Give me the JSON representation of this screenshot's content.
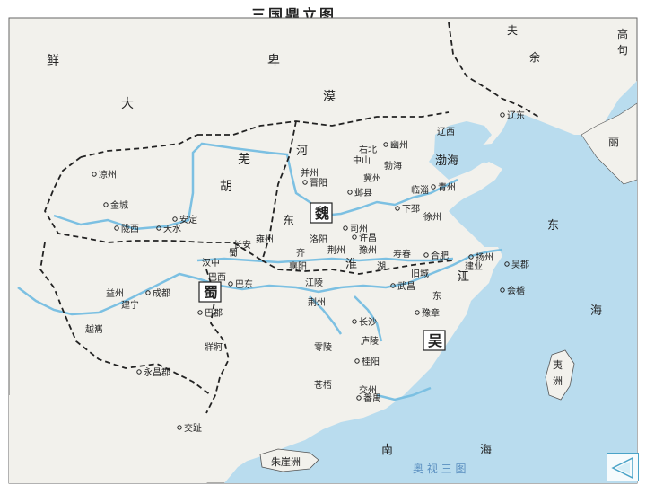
{
  "title": "三国鼎立图",
  "colors": {
    "sea": "#b9dcee",
    "land": "#f2f1ec",
    "river": "#7cc0e2",
    "border": "#222222",
    "text": "#222222",
    "nav": "#4aa3c8"
  },
  "states": [
    {
      "id": "wei",
      "label": "魏"
    },
    {
      "id": "shu",
      "label": "蜀"
    },
    {
      "id": "wu",
      "label": "吴"
    }
  ],
  "regions": {
    "xianbei": [
      "鲜",
      "卑"
    ],
    "damo": [
      "大",
      "漠"
    ],
    "qiangdi": [
      "羌",
      "胡"
    ],
    "fuyu": [
      "夫",
      "余"
    ],
    "gaoju": [
      "高",
      "句",
      "丽"
    ]
  },
  "seas": {
    "bohai": "渤海",
    "donghai": [
      "东",
      "海"
    ],
    "nanhai": [
      "南",
      "海"
    ]
  },
  "islands": {
    "yizhou": [
      "夷",
      "洲"
    ],
    "zhuyazhou": "朱崖洲"
  },
  "rivers": {
    "he": "河",
    "huai": "淮",
    "jiang": "江",
    "dongdong": "东"
  },
  "cities": {
    "youzhou": "幽州",
    "liaodong": "辽东",
    "jiangdong": "辽西",
    "youbeiping": "右北",
    "zhongshan": "中山",
    "bohai_jun": "勃海",
    "bingzhou": "并州",
    "jinyang": "晋阳",
    "jizhou": "冀州",
    "ye": "邺县",
    "linzi": "临淄",
    "qingzhou": "青州",
    "xiapi": "下邳",
    "xuzhou": "徐州",
    "sili": "司州",
    "luoyang": "洛阳",
    "xuchang": "许昌",
    "yuzhou": "豫州",
    "shouchun": "寿春",
    "yongzhou": "雍州",
    "changan": "长安",
    "anding": "安定",
    "tianshui": "天水",
    "longxi": "陇西",
    "liangzhou": "凉州",
    "jincheng": "金城",
    "hanzhong": "汉中",
    "baxi": "巴西",
    "badong": "巴东",
    "chengdu": "成都",
    "yizhou_shu": "益州",
    "jianning": "建宁",
    "yuexi": "越巂",
    "bajun": "巴郡",
    "jingzhou_n": "荆州",
    "xiangyang": "襄阳",
    "jiangling": "江陵",
    "jingzhou_s": "荆州",
    "wuchang": "武昌",
    "hefei": "合肥",
    "jiujiang": "旧城",
    "yangzhou": "扬州",
    "jianye": "建业",
    "wujun": "吴郡",
    "kuaiji": "会稽",
    "changsha": "长沙",
    "yuzhang": "豫章",
    "lingling": "零陵",
    "luling": "庐陵",
    "guiyang": "桂阳",
    "cangwu": "苍梧",
    "jiaozhou": "交州",
    "fanyu": "番禺",
    "jiaozhi": "交趾",
    "zangke": "牂牁",
    "yongchang": "永昌郡",
    "shu_jun": "蜀",
    "jiang_wu": "江",
    "qi": "齐",
    "hu": "湖",
    "dong": "东"
  },
  "credit": "奥 视 三 图"
}
